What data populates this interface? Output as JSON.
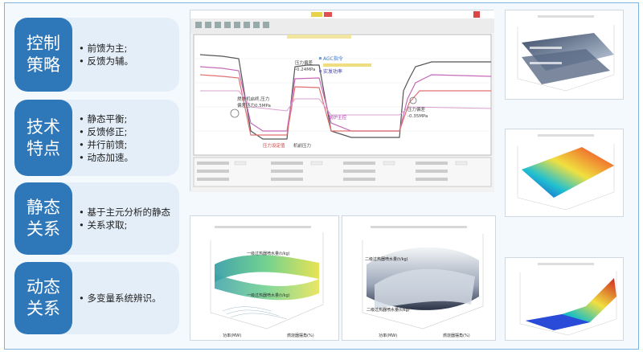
{
  "sections": [
    {
      "tag": "控制\n策略",
      "items": [
        "前馈为主;",
        "反馈为辅。"
      ]
    },
    {
      "tag": "技术\n特点",
      "items": [
        "静态平衡;",
        "反馈修正;",
        "并行前馈;",
        "动态加速。"
      ]
    },
    {
      "tag": "静态\n关系",
      "items": [
        "基于主元分析的静态",
        "关系求取;"
      ]
    },
    {
      "tag": "动态\n关系",
      "items": [
        "多变量系统辨识。"
      ]
    }
  ],
  "trend": {
    "legend": [
      "AGC指令",
      "实发功率"
    ],
    "annotations": {
      "a1": "燃烧机启终,压力",
      "a2": "偏差压力0.5MPa",
      "a3": "压力偏差",
      "a4": "-0.24MPa",
      "a5": "锅炉主控",
      "a6": "压力偏差",
      "a7": "-0.35MPa",
      "a8": "压力设定值",
      "a9": "机前压力"
    }
  },
  "surf1": {
    "label_top": "一级过热器喷水量(t/kg)",
    "label_bottom": "一级过热器喷水量(t/kg)",
    "axis_x": "功率(MW)",
    "axis_y": "燃烧器摆角(%)"
  },
  "surf2": {
    "label_top": "二级过热器喷水量(t/kg)",
    "label_bottom": "二级过热器喷水量(t/kg)",
    "axis_x": "功率(MW)",
    "axis_y": "燃烧器摆角(%)"
  },
  "colors": {
    "accent": "#2e77b8",
    "pill_bg": "#e3eef8",
    "frame": "#7fb3dd"
  }
}
